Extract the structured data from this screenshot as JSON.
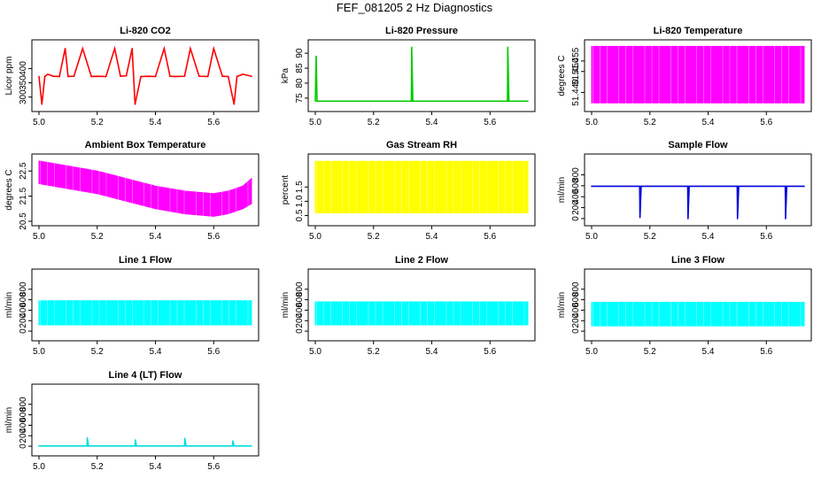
{
  "figure_title": "FEF_081205  2 Hz Diagnostics",
  "chart_data": [
    {
      "type": "line",
      "title": "Li-820 CO2",
      "xlabel": "",
      "ylabel": "Licor ppm",
      "color": "#ff0000",
      "xlim": [
        5.0,
        5.73
      ],
      "xticks": [
        "5.0",
        "5.2",
        "5.4",
        "5.6"
      ],
      "ylim": [
        265,
        485
      ],
      "yticks": [
        "300",
        "350",
        "400"
      ],
      "series": [
        {
          "x": [
            5.0,
            5.01,
            5.02,
            5.03,
            5.05,
            5.07,
            5.09,
            5.1,
            5.12,
            5.15,
            5.18,
            5.2,
            5.23,
            5.26,
            5.28,
            5.3,
            5.32,
            5.33,
            5.35,
            5.37,
            5.4,
            5.43,
            5.45,
            5.47,
            5.5,
            5.52,
            5.55,
            5.58,
            5.6,
            5.63,
            5.65,
            5.67,
            5.68,
            5.7,
            5.73
          ],
          "y": [
            372,
            275,
            372,
            380,
            373,
            372,
            470,
            372,
            373,
            470,
            372,
            373,
            372,
            470,
            373,
            375,
            470,
            275,
            372,
            373,
            372,
            470,
            373,
            372,
            373,
            470,
            373,
            372,
            470,
            373,
            372,
            275,
            372,
            380,
            373
          ]
        }
      ],
      "baseline": 372
    },
    {
      "type": "line",
      "title": "Li-820 Pressure",
      "xlabel": "",
      "ylabel": "kPa",
      "color": "#00cc00",
      "xlim": [
        5.0,
        5.73
      ],
      "xticks": [
        "5.0",
        "5.2",
        "5.4",
        "5.6"
      ],
      "ylim": [
        72,
        93
      ],
      "yticks": [
        "75",
        "80",
        "85",
        "90"
      ],
      "series": [
        {
          "x": [
            5.0,
            5.003,
            5.006,
            5.01,
            5.1,
            5.33,
            5.331,
            5.335,
            5.5,
            5.66,
            5.661,
            5.665,
            5.73
          ],
          "y": [
            74,
            89,
            74,
            74,
            74,
            74,
            92,
            74,
            74,
            74,
            92,
            74,
            74
          ]
        }
      ],
      "baseline": 74
    },
    {
      "type": "area",
      "title": "Li-820 Temperature",
      "xlabel": "",
      "ylabel": "degrees C",
      "color": "#ff00ff",
      "xlim": [
        5.0,
        5.73
      ],
      "xticks": [
        "5.0",
        "5.2",
        "5.4",
        "5.6"
      ],
      "ylim": [
        51.433,
        51.463
      ],
      "yticks": [
        "51.440",
        "51.450",
        "51.455"
      ],
      "band": {
        "x": [
          5.0,
          5.73
        ],
        "low": 51.435,
        "high": 51.462
      }
    },
    {
      "type": "area",
      "title": "Ambient Box Temperature",
      "xlabel": "",
      "ylabel": "degrees C",
      "color": "#ff00ff",
      "xlim": [
        5.0,
        5.73
      ],
      "xticks": [
        "5.0",
        "5.2",
        "5.4",
        "5.6"
      ],
      "ylim": [
        20.5,
        23.0
      ],
      "yticks": [
        "20.5",
        "21.5",
        "22.5"
      ],
      "band": {
        "x": [
          5.0,
          5.1,
          5.2,
          5.3,
          5.4,
          5.5,
          5.6,
          5.65,
          5.7,
          5.73
        ],
        "low": [
          22.0,
          21.8,
          21.6,
          21.3,
          21.0,
          20.8,
          20.7,
          20.8,
          21.0,
          21.2
        ],
        "high": [
          22.9,
          22.7,
          22.5,
          22.2,
          21.9,
          21.7,
          21.6,
          21.7,
          21.9,
          22.2
        ]
      }
    },
    {
      "type": "area",
      "title": "Gas Stream RH",
      "xlabel": "",
      "ylabel": "percent",
      "color": "#ffff00",
      "xlim": [
        5.0,
        5.73
      ],
      "xticks": [
        "5.0",
        "5.2",
        "5.4",
        "5.6"
      ],
      "ylim": [
        0.3,
        2.5
      ],
      "yticks": [
        "0.5",
        "1.0",
        "1.5"
      ],
      "band": {
        "x": [
          5.0,
          5.73
        ],
        "low": 0.6,
        "high": 2.4
      }
    },
    {
      "type": "line",
      "title": "Sample Flow",
      "xlabel": "",
      "ylabel": "ml/min",
      "color": "#0000dd",
      "xlim": [
        5.0,
        5.73
      ],
      "xticks": [
        "5.0",
        "5.2",
        "5.4",
        "5.6"
      ],
      "ylim": [
        -50,
        1100
      ],
      "yticks": [
        "0",
        "200",
        "400",
        "600",
        "800"
      ],
      "series": [
        {
          "x": [
            5.0,
            5.165,
            5.166,
            5.17,
            5.33,
            5.331,
            5.335,
            5.5,
            5.501,
            5.505,
            5.665,
            5.666,
            5.67,
            5.73
          ],
          "y": [
            590,
            590,
            20,
            590,
            590,
            0,
            590,
            590,
            0,
            590,
            590,
            0,
            590,
            590
          ]
        }
      ],
      "baseline": 590
    },
    {
      "type": "area",
      "title": "Line 1 Flow",
      "xlabel": "",
      "ylabel": "ml/min",
      "color": "#00ffff",
      "xlim": [
        5.0,
        5.73
      ],
      "xticks": [
        "5.0",
        "5.2",
        "5.4",
        "5.6"
      ],
      "ylim": [
        -100,
        1100
      ],
      "yticks": [
        "0",
        "200",
        "400",
        "600",
        "800"
      ],
      "band": {
        "x": [
          5.0,
          5.73
        ],
        "low": 120,
        "high": 580
      }
    },
    {
      "type": "area",
      "title": "Line 2 Flow",
      "xlabel": "",
      "ylabel": "ml/min",
      "color": "#00ffff",
      "xlim": [
        5.0,
        5.73
      ],
      "xticks": [
        "5.0",
        "5.2",
        "5.4",
        "5.6"
      ],
      "ylim": [
        -100,
        1100
      ],
      "yticks": [
        "0",
        "200",
        "400",
        "600",
        "800"
      ],
      "band": {
        "x": [
          5.0,
          5.73
        ],
        "low": 120,
        "high": 560
      }
    },
    {
      "type": "area",
      "title": "Line 3 Flow",
      "xlabel": "",
      "ylabel": "ml/min",
      "color": "#00ffff",
      "xlim": [
        5.0,
        5.73
      ],
      "xticks": [
        "5.0",
        "5.2",
        "5.4",
        "5.6"
      ],
      "ylim": [
        -100,
        1100
      ],
      "yticks": [
        "0",
        "200",
        "400",
        "600",
        "800"
      ],
      "band": {
        "x": [
          5.0,
          5.73
        ],
        "low": 100,
        "high": 550
      }
    },
    {
      "type": "line",
      "title": "Line 4 (LT) Flow",
      "xlabel": "",
      "ylabel": "ml/min",
      "color": "#00dddd",
      "xlim": [
        5.0,
        5.73
      ],
      "xticks": [
        "5.0",
        "5.2",
        "5.4",
        "5.6"
      ],
      "ylim": [
        -100,
        1100
      ],
      "yticks": [
        "0",
        "200",
        "400",
        "600",
        "800"
      ],
      "series": [
        {
          "x": [
            5.0,
            5.165,
            5.166,
            5.17,
            5.33,
            5.331,
            5.335,
            5.5,
            5.501,
            5.505,
            5.665,
            5.666,
            5.67,
            5.73
          ],
          "y": [
            5,
            5,
            160,
            5,
            5,
            120,
            5,
            5,
            150,
            5,
            5,
            100,
            5,
            5
          ]
        }
      ],
      "baseline": 5
    }
  ]
}
